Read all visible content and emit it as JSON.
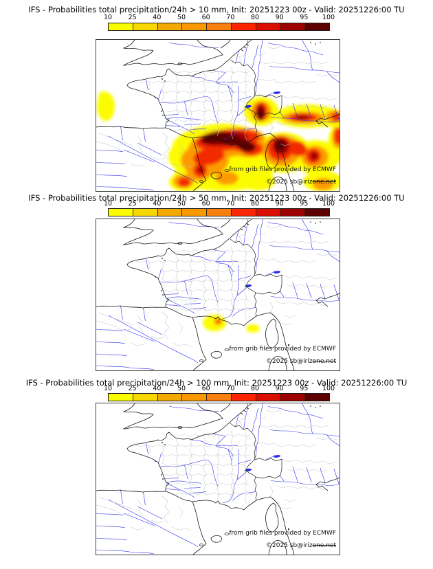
{
  "colorbar": {
    "ticks": [
      "10",
      "25",
      "40",
      "50",
      "60",
      "70",
      "80",
      "90",
      "95",
      "100"
    ],
    "colors": [
      "#fcfc00",
      "#f6d800",
      "#f3a900",
      "#fa9800",
      "#f97f0e",
      "#fb2500",
      "#da0f00",
      "#9e0000",
      "#5c0000"
    ]
  },
  "levels": {
    "y": "#fcfc00",
    "o": "#fc9b00",
    "r": "#f32b00",
    "d": "#a40000",
    "m": "#5c0000"
  },
  "panels": [
    {
      "title": "IFS - Probabilities total precipitation/24h > 10 mm, Init: 20251223 00z - Valid: 20251226:00 TU",
      "attribution": "from grib files provided by ECMWF",
      "copyright_plain": "©2025 sb@iriz",
      "copyright_struck": "one.net",
      "blobs": [
        [
          14,
          97,
          13,
          21,
          0,
          "y"
        ],
        [
          11,
          82,
          8,
          7,
          0,
          "y"
        ],
        [
          170,
          149,
          60,
          26,
          -8,
          "y"
        ],
        [
          150,
          170,
          45,
          28,
          0,
          "y"
        ],
        [
          205,
          158,
          55,
          28,
          0,
          "y"
        ],
        [
          185,
          196,
          72,
          24,
          0,
          "y"
        ],
        [
          132,
          207,
          26,
          14,
          0,
          "y"
        ],
        [
          240,
          104,
          25,
          21,
          0,
          "y"
        ],
        [
          307,
          111,
          47,
          17,
          0,
          "y"
        ],
        [
          341,
          113,
          22,
          14,
          15,
          "y"
        ],
        [
          350,
          153,
          13,
          27,
          0,
          "y"
        ],
        [
          272,
          164,
          41,
          29,
          0,
          "y"
        ],
        [
          320,
          171,
          33,
          25,
          0,
          "y"
        ],
        [
          235,
          206,
          25,
          13,
          0,
          "y"
        ],
        [
          330,
          206,
          29,
          15,
          0,
          "y"
        ],
        [
          190,
          150,
          56,
          21,
          -8,
          "o"
        ],
        [
          158,
          175,
          35,
          23,
          0,
          "o"
        ],
        [
          222,
          157,
          26,
          14,
          0,
          "o"
        ],
        [
          240,
          104,
          15,
          15,
          0,
          "o"
        ],
        [
          302,
          113,
          31,
          9,
          0,
          "o"
        ],
        [
          345,
          112,
          11,
          9,
          0,
          "o"
        ],
        [
          351,
          142,
          8,
          16,
          0,
          "o"
        ],
        [
          270,
          161,
          28,
          23,
          0,
          "o"
        ],
        [
          318,
          170,
          20,
          16,
          0,
          "o"
        ],
        [
          150,
          191,
          19,
          14,
          0,
          "o"
        ],
        [
          127,
          206,
          15,
          10,
          0,
          "o"
        ],
        [
          190,
          201,
          17,
          10,
          0,
          "o"
        ],
        [
          330,
          210,
          15,
          9,
          0,
          "o"
        ],
        [
          191,
          146,
          47,
          15,
          -6,
          "r"
        ],
        [
          164,
          170,
          23,
          12,
          -10,
          "r"
        ],
        [
          212,
          152,
          19,
          10,
          0,
          "r"
        ],
        [
          226,
          158,
          16,
          10,
          0,
          "r"
        ],
        [
          240,
          104,
          9,
          13,
          0,
          "r"
        ],
        [
          301,
          113,
          21,
          6,
          0,
          "r"
        ],
        [
          350,
          112,
          7,
          8,
          0,
          "r"
        ],
        [
          352,
          140,
          6,
          12,
          0,
          "r"
        ],
        [
          268,
          158,
          19,
          18,
          0,
          "r"
        ],
        [
          293,
          158,
          14,
          11,
          20,
          "r"
        ],
        [
          316,
          169,
          11,
          11,
          0,
          "r"
        ],
        [
          151,
          190,
          10,
          10,
          0,
          "r"
        ],
        [
          128,
          207,
          9,
          7,
          0,
          "r"
        ],
        [
          186,
          144,
          35,
          10,
          -5,
          "d"
        ],
        [
          239,
          106,
          7,
          12,
          0,
          "d"
        ],
        [
          300,
          113,
          10,
          4,
          0,
          "d"
        ],
        [
          269,
          155,
          12,
          12,
          0,
          "d"
        ],
        [
          317,
          169,
          6,
          6,
          0,
          "d"
        ],
        [
          152,
          189,
          5,
          5,
          0,
          "d"
        ],
        [
          174,
          142,
          21,
          8,
          -8,
          "m"
        ],
        [
          196,
          146,
          15,
          8,
          0,
          "m"
        ],
        [
          213,
          151,
          12,
          6,
          0,
          "m"
        ],
        [
          220,
          156,
          12,
          7,
          0,
          "m"
        ],
        [
          239,
          107,
          4,
          8,
          0,
          "m"
        ],
        [
          268,
          153,
          7,
          8,
          0,
          "m"
        ]
      ]
    },
    {
      "title": "IFS - Probabilities total precipitation/24h > 50 mm, Init: 20251223 00z - Valid: 20251226:00 TU",
      "attribution": "from grib files provided by ECMWF",
      "copyright_plain": "©2025 sb@iriz",
      "copyright_struck": "one.net",
      "blobs": [
        [
          172,
          151,
          17,
          12,
          0,
          "y"
        ],
        [
          228,
          159,
          10,
          6,
          0,
          "y"
        ],
        [
          177,
          149,
          6,
          5,
          0,
          "o"
        ],
        [
          178,
          149,
          3,
          3,
          0,
          "r"
        ]
      ]
    },
    {
      "title": "IFS - Probabilities total precipitation/24h > 100 mm, Init: 20251223 00z - Valid: 20251226:00 TU",
      "attribution": "from grib files provided by ECMWF",
      "copyright_plain": "©2025 sb@iriz",
      "copyright_struck": "one.net",
      "blobs": []
    }
  ]
}
